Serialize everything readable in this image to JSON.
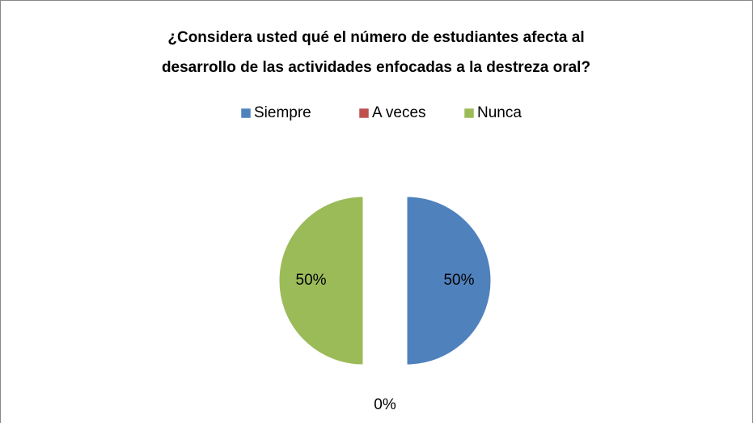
{
  "chart_data": {
    "type": "pie",
    "title": [
      "¿Considera usted qué el número de estudiantes afecta al",
      "desarrollo de las actividades enfocadas a la destreza oral?"
    ],
    "categories": [
      "Siempre",
      "A veces",
      "Nunca"
    ],
    "values": [
      50,
      0,
      50
    ],
    "value_labels": [
      "50%",
      "0%",
      "50%"
    ],
    "colors": [
      "#4f81bd",
      "#c0504d",
      "#9bbb59"
    ],
    "legend": "top"
  }
}
